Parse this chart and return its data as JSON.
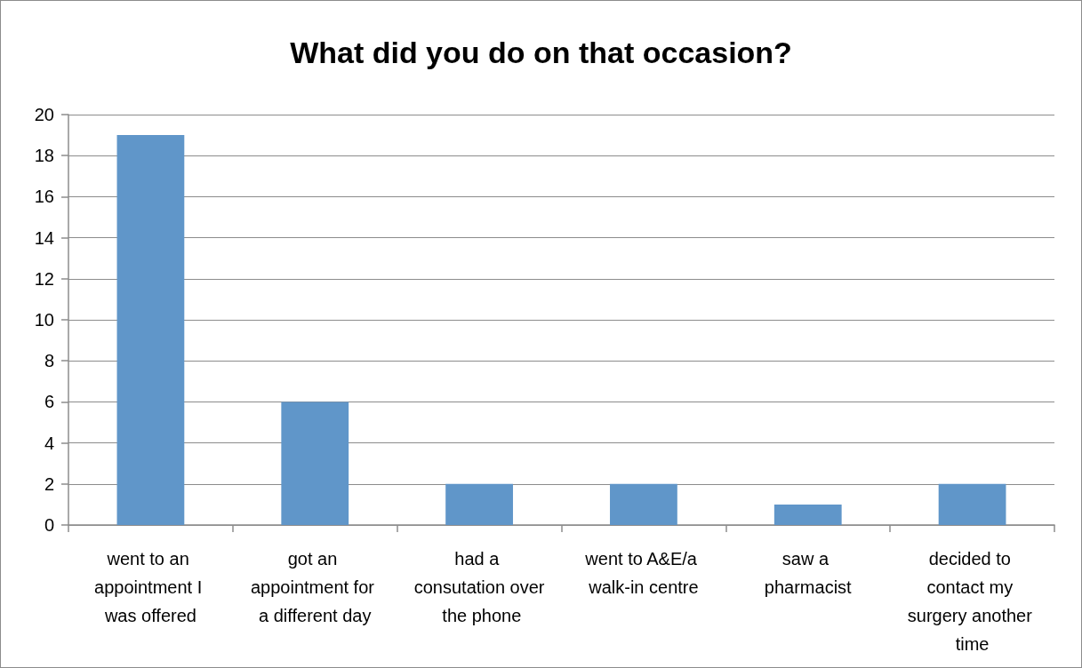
{
  "chart_data": {
    "type": "bar",
    "title": "What did you do on that occasion?",
    "categories": [
      "went to an appointment I was offered",
      "got an appointment for a different day",
      "had a consutation over the phone",
      "went to A&E/a walk-in centre",
      "saw a pharmacist",
      "decided to contact my surgery another time"
    ],
    "values": [
      19,
      6,
      2,
      2,
      1,
      2
    ],
    "color": "#6096c9",
    "ylim": [
      0,
      20
    ],
    "yticks": [
      0,
      2,
      4,
      6,
      8,
      10,
      12,
      14,
      16,
      18,
      20
    ],
    "grid": "y"
  }
}
